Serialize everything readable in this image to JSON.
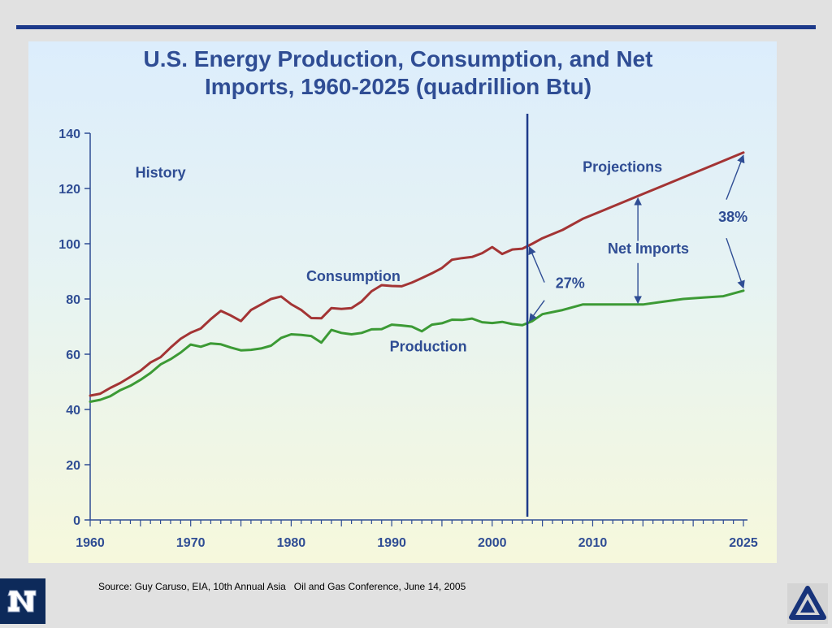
{
  "slide": {
    "source": "Source: Guy Caruso, EIA, 10th Annual Asia   Oil and Gas Conference, June 14, 2005",
    "colors": {
      "rule": "#1d3a8a",
      "title": "#2f4d94",
      "consumption": "#a33434",
      "production": "#3c9a35",
      "divider": "#1d3a8a"
    }
  },
  "chart_data": {
    "type": "line",
    "title": "U.S. Energy Production, Consumption, and Net Imports, 1960-2025 (quadrillion Btu)",
    "title_lines": [
      "U.S. Energy Production, Consumption, and Net",
      "Imports, 1960-2025 (quadrillion Btu)"
    ],
    "xlabel": "",
    "ylabel": "",
    "xlim": [
      1960,
      2025
    ],
    "ylim": [
      0,
      140
    ],
    "x_ticks": [
      1960,
      1970,
      1980,
      1990,
      2000,
      2010,
      2025
    ],
    "x_tick_labels": [
      "1960",
      "1970",
      "1980",
      "1990",
      "2000",
      "2010",
      "2025"
    ],
    "y_ticks": [
      0,
      20,
      40,
      60,
      80,
      100,
      120,
      140
    ],
    "y_tick_labels": [
      "0",
      "20",
      "40",
      "60",
      "80",
      "100",
      "120",
      "140"
    ],
    "divider_year": 2003.5,
    "series": [
      {
        "name": "Consumption",
        "color": "#a33434",
        "points": [
          [
            1960,
            45
          ],
          [
            1961,
            45.7
          ],
          [
            1962,
            47.8
          ],
          [
            1963,
            49.6
          ],
          [
            1964,
            51.8
          ],
          [
            1965,
            54
          ],
          [
            1966,
            57
          ],
          [
            1967,
            58.9
          ],
          [
            1968,
            62.4
          ],
          [
            1969,
            65.6
          ],
          [
            1970,
            67.8
          ],
          [
            1971,
            69.3
          ],
          [
            1972,
            72.7
          ],
          [
            1973,
            75.7
          ],
          [
            1974,
            74
          ],
          [
            1975,
            72
          ],
          [
            1976,
            76
          ],
          [
            1977,
            78
          ],
          [
            1978,
            80
          ],
          [
            1979,
            80.9
          ],
          [
            1980,
            78.1
          ],
          [
            1981,
            76
          ],
          [
            1982,
            73.1
          ],
          [
            1983,
            73
          ],
          [
            1984,
            76.7
          ],
          [
            1985,
            76.4
          ],
          [
            1986,
            76.7
          ],
          [
            1987,
            79.1
          ],
          [
            1988,
            82.8
          ],
          [
            1989,
            85
          ],
          [
            1990,
            84.7
          ],
          [
            1991,
            84.6
          ],
          [
            1992,
            85.9
          ],
          [
            1993,
            87.6
          ],
          [
            1994,
            89.3
          ],
          [
            1995,
            91.2
          ],
          [
            1996,
            94.2
          ],
          [
            1997,
            94.8
          ],
          [
            1998,
            95.2
          ],
          [
            1999,
            96.6
          ],
          [
            2000,
            98.8
          ],
          [
            2001,
            96.3
          ],
          [
            2002,
            97.9
          ],
          [
            2003,
            98.2
          ],
          [
            2004,
            100
          ],
          [
            2005,
            102
          ],
          [
            2007,
            105
          ],
          [
            2009,
            109
          ],
          [
            2011,
            112
          ],
          [
            2013,
            115
          ],
          [
            2015,
            118
          ],
          [
            2017,
            121
          ],
          [
            2019,
            124
          ],
          [
            2021,
            127
          ],
          [
            2023,
            130
          ],
          [
            2025,
            133
          ]
        ]
      },
      {
        "name": "Production",
        "color": "#3c9a35",
        "points": [
          [
            1960,
            42.8
          ],
          [
            1961,
            43.5
          ],
          [
            1962,
            44.8
          ],
          [
            1963,
            47
          ],
          [
            1964,
            48.6
          ],
          [
            1965,
            50.7
          ],
          [
            1966,
            53.2
          ],
          [
            1967,
            56.3
          ],
          [
            1968,
            58.2
          ],
          [
            1969,
            60.6
          ],
          [
            1970,
            63.5
          ],
          [
            1971,
            62.7
          ],
          [
            1972,
            63.9
          ],
          [
            1973,
            63.6
          ],
          [
            1974,
            62.4
          ],
          [
            1975,
            61.4
          ],
          [
            1976,
            61.6
          ],
          [
            1977,
            62.1
          ],
          [
            1978,
            63.1
          ],
          [
            1979,
            65.9
          ],
          [
            1980,
            67.2
          ],
          [
            1981,
            67
          ],
          [
            1982,
            66.6
          ],
          [
            1983,
            64.2
          ],
          [
            1984,
            68.8
          ],
          [
            1985,
            67.7
          ],
          [
            1986,
            67.2
          ],
          [
            1987,
            67.7
          ],
          [
            1988,
            69
          ],
          [
            1989,
            69.1
          ],
          [
            1990,
            70.7
          ],
          [
            1991,
            70.4
          ],
          [
            1992,
            70
          ],
          [
            1993,
            68.3
          ],
          [
            1994,
            70.7
          ],
          [
            1995,
            71.2
          ],
          [
            1996,
            72.5
          ],
          [
            1997,
            72.4
          ],
          [
            1998,
            72.9
          ],
          [
            1999,
            71.6
          ],
          [
            2000,
            71.3
          ],
          [
            2001,
            71.7
          ],
          [
            2002,
            70.9
          ],
          [
            2003,
            70.5
          ],
          [
            2004,
            72
          ],
          [
            2005,
            74.5
          ],
          [
            2007,
            76
          ],
          [
            2009,
            78
          ],
          [
            2011,
            78
          ],
          [
            2013,
            78
          ],
          [
            2015,
            78
          ],
          [
            2017,
            79
          ],
          [
            2019,
            80
          ],
          [
            2021,
            80.5
          ],
          [
            2023,
            81
          ],
          [
            2025,
            83
          ]
        ]
      }
    ],
    "annotations": [
      {
        "id": "history",
        "text": "History",
        "x": 1964.5,
        "y": 124
      },
      {
        "id": "projections",
        "text": "Projections",
        "x": 2009,
        "y": 126
      },
      {
        "id": "consumption",
        "text": "Consumption",
        "x": 1981.5,
        "y": 86.5
      },
      {
        "id": "production",
        "text": "Production",
        "x": 1989.8,
        "y": 61
      },
      {
        "id": "net-imports",
        "text": "Net Imports",
        "x": 2011.5,
        "y": 96.5
      },
      {
        "id": "pct-27",
        "text": "27%",
        "x": 2006.3,
        "y": 84
      },
      {
        "id": "pct-38",
        "text": "38%",
        "x": 2022.5,
        "y": 108
      }
    ],
    "arrows": [
      {
        "id": "arrow-27-up",
        "from": [
          2005.2,
          86
        ],
        "to": [
          2003.7,
          98.8
        ]
      },
      {
        "id": "arrow-27-down",
        "from": [
          2005.2,
          79.5
        ],
        "to": [
          2003.7,
          72
        ]
      },
      {
        "id": "arrow-38-up",
        "from": [
          2023.3,
          116
        ],
        "to": [
          2025,
          132
        ]
      },
      {
        "id": "arrow-38-down",
        "from": [
          2023.3,
          102
        ],
        "to": [
          2025,
          84
        ]
      },
      {
        "id": "arrow-net-up",
        "from": [
          2014.5,
          101
        ],
        "to": [
          2014.5,
          116.5
        ]
      },
      {
        "id": "arrow-net-down",
        "from": [
          2014.5,
          93
        ],
        "to": [
          2014.5,
          78.5
        ]
      }
    ]
  }
}
